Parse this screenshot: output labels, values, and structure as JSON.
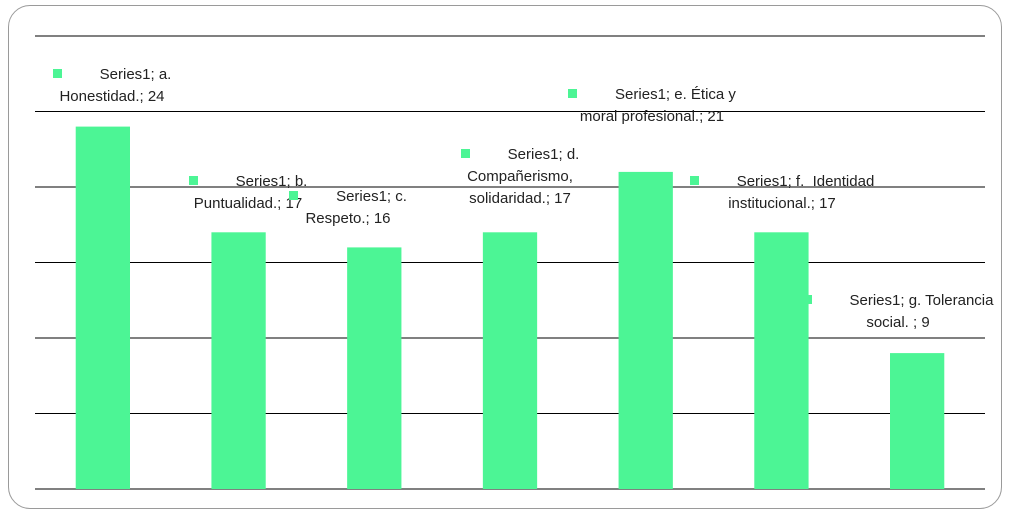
{
  "chart_data": {
    "type": "bar",
    "series": [
      {
        "color": "#4cf595",
        "values": [
          24,
          17,
          16,
          17,
          21,
          17,
          9
        ],
        "value_labels": [
          "Series1; a. Honestidad.; 24",
          "Series1; b. Puntualidad.; 17",
          "Series1; c. Respeto.; 16",
          "Series1; d. Compañerismo, solidaridad.; 17",
          "Series1; e. Ética y moral profesional.; 21",
          "Series1; f.  Identidad institucional.; 17",
          "Series1; g. Tolerancia social. ; 9"
        ]
      }
    ],
    "ylim": [
      0,
      30
    ],
    "yticks": [
      0,
      5,
      10,
      15,
      20,
      25,
      30
    ],
    "grid": true
  }
}
